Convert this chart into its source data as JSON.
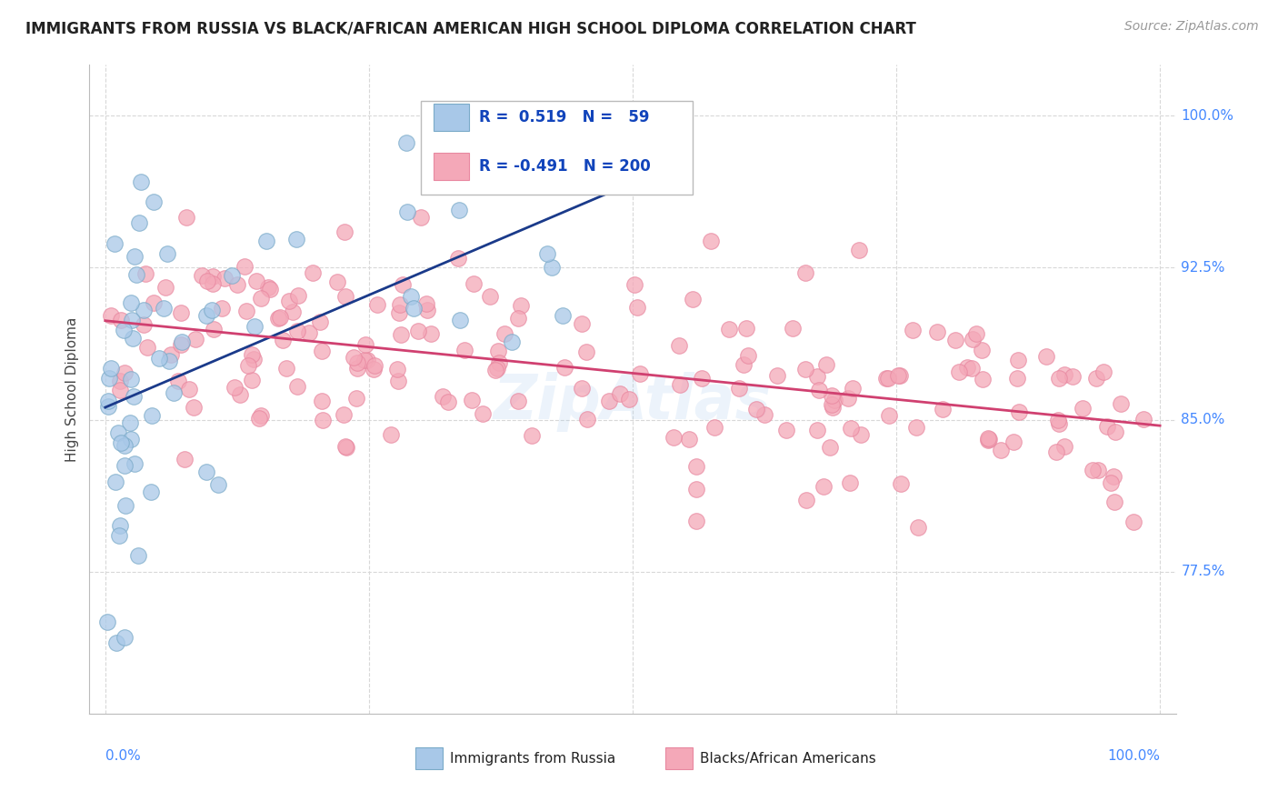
{
  "title": "IMMIGRANTS FROM RUSSIA VS BLACK/AFRICAN AMERICAN HIGH SCHOOL DIPLOMA CORRELATION CHART",
  "source": "Source: ZipAtlas.com",
  "ylabel": "High School Diploma",
  "ytick_positions": [
    77.5,
    85.0,
    92.5,
    100.0
  ],
  "ytick_labels": [
    "77.5%",
    "85.0%",
    "92.5%",
    "100.0%"
  ],
  "ylim": [
    70.5,
    102.5
  ],
  "xlim": [
    -1.5,
    101.5
  ],
  "blue_R": 0.519,
  "blue_N": 59,
  "pink_R": -0.491,
  "pink_N": 200,
  "blue_color": "#a8c8e8",
  "pink_color": "#f4a8b8",
  "blue_edge_color": "#7aaac8",
  "pink_edge_color": "#e888a0",
  "blue_line_color": "#1a3a8a",
  "pink_line_color": "#d04070",
  "legend_label_blue": "Immigrants from Russia",
  "legend_label_pink": "Blacks/African Americans",
  "background_color": "#ffffff",
  "grid_color": "#d8d8d8",
  "title_color": "#222222",
  "source_color": "#999999",
  "right_label_color": "#4488ff",
  "bottom_label_color": "#4488ff",
  "watermark": "ZipAtlas",
  "legend_text_color": "#1144bb"
}
